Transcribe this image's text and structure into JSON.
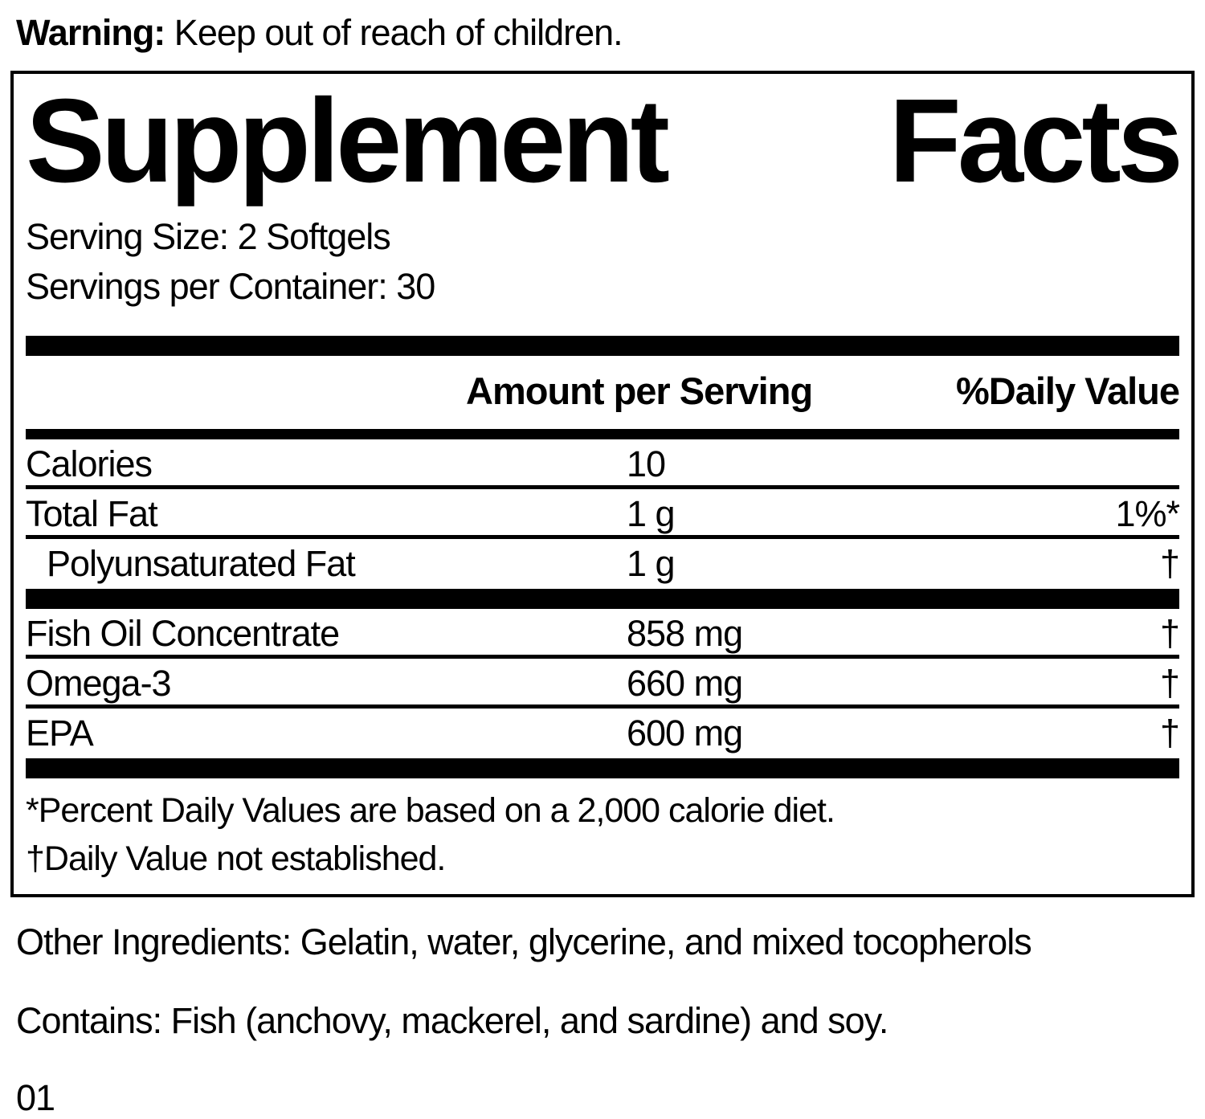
{
  "warning": {
    "label": "Warning:",
    "text": " Keep out of reach of children."
  },
  "panel": {
    "title_left": "Supplement",
    "title_right": "Facts",
    "serving_size": "Serving Size: 2 Softgels",
    "servings_per_container": "Servings per Container: 30",
    "columns": {
      "amount": "Amount per Serving",
      "daily_value": "%Daily Value"
    },
    "rows": [
      {
        "name": "Calories",
        "amount": "10",
        "dv": ""
      },
      {
        "name": "Total Fat",
        "amount": "1 g",
        "dv": "1%*"
      },
      {
        "name": "Polyunsaturated Fat",
        "amount": "1 g",
        "dv": "†"
      },
      {
        "name": "Fish Oil Concentrate",
        "amount": "858 mg",
        "dv": "†"
      },
      {
        "name": "Omega-3",
        "amount": "660 mg",
        "dv": "†"
      },
      {
        "name": "EPA",
        "amount": "600 mg",
        "dv": "†"
      }
    ],
    "footnotes": [
      "*Percent Daily Values are based on a 2,000 calorie diet.",
      "†Daily Value not established."
    ]
  },
  "other_ingredients": "Other Ingredients: Gelatin, water, glycerine, and mixed tocopherols",
  "contains": "Contains: Fish (anchovy, mackerel, and sardine) and soy.",
  "footer_code": "01",
  "colors": {
    "text": "#000000",
    "background": "#ffffff",
    "rule": "#000000"
  }
}
